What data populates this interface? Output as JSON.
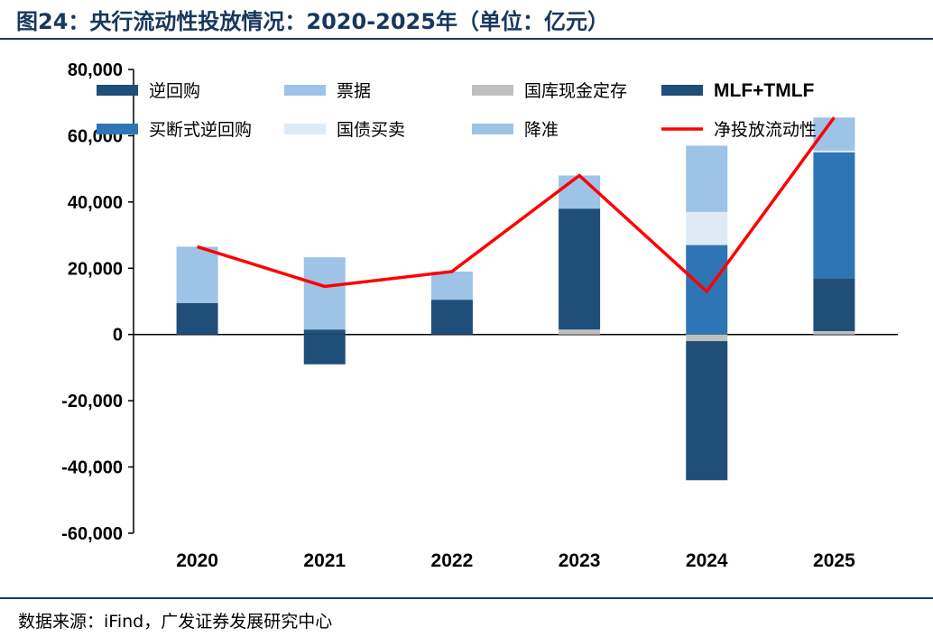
{
  "header": {
    "title": "图24：央行流动性投放情况：2020-2025年（单位：亿元）"
  },
  "footer": {
    "source": "数据来源：iFind，广发证券发展研究中心"
  },
  "chart_data": {
    "type": "bar",
    "stacked": true,
    "categories": [
      "2020",
      "2021",
      "2022",
      "2023",
      "2024",
      "2025"
    ],
    "ylim": [
      -60000,
      80000
    ],
    "yticks": [
      80000,
      60000,
      40000,
      20000,
      0,
      -20000,
      -40000,
      -60000
    ],
    "ytick_labels": [
      "80,000",
      "60,000",
      "40,000",
      "20,000",
      "0",
      "-20,000",
      "-40,000",
      "-60,000"
    ],
    "legend_position": "top",
    "series": [
      {
        "name": "逆回购",
        "type": "bar",
        "color": "#1f4e79",
        "values": [
          9500,
          -9000,
          0,
          0,
          0,
          0
        ]
      },
      {
        "name": "票据",
        "type": "bar",
        "color": "#9dc3e6",
        "values": [
          17000,
          0,
          0,
          0,
          0,
          0
        ]
      },
      {
        "name": "国库现金定存",
        "type": "bar",
        "color": "#bfbfbf",
        "values": [
          0,
          0,
          0,
          1500,
          -2000,
          1000
        ]
      },
      {
        "name": "MLF+TMLF",
        "type": "bar",
        "color": "#1f4e79",
        "values": [
          0,
          1500,
          10500,
          36500,
          -42000,
          16000
        ]
      },
      {
        "name": "买断式逆回购",
        "type": "bar",
        "color": "#2e75b6",
        "values": [
          0,
          0,
          0,
          0,
          27000,
          38000
        ]
      },
      {
        "name": "国债买卖",
        "type": "bar",
        "color": "#deebf7",
        "values": [
          0,
          0,
          0,
          0,
          10000,
          500
        ]
      },
      {
        "name": "降准",
        "type": "bar",
        "color": "#9dc3e6",
        "values": [
          0,
          21800,
          8500,
          10000,
          20000,
          10000
        ]
      },
      {
        "name": "净投放流动性",
        "type": "line",
        "color": "#ff0000",
        "values": [
          26500,
          14500,
          19000,
          48000,
          13000,
          65500
        ]
      }
    ]
  }
}
